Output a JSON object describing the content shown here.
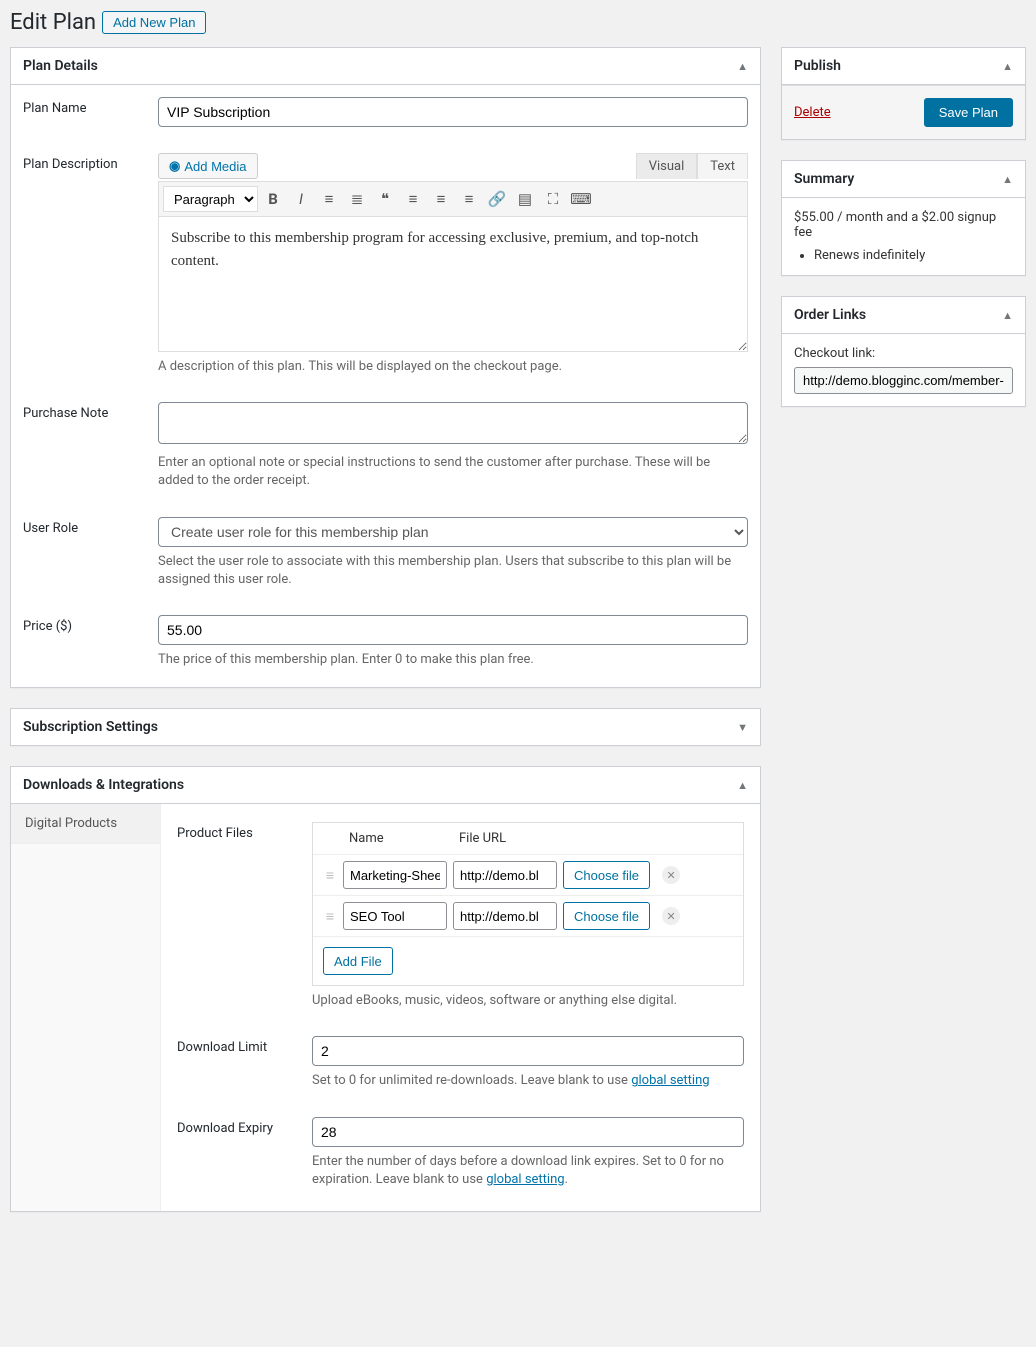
{
  "header": {
    "title": "Edit Plan",
    "add_new_btn": "Add New Plan"
  },
  "plan_details": {
    "panel_title": "Plan Details",
    "plan_name": {
      "label": "Plan Name",
      "value": "VIP Subscription"
    },
    "plan_description": {
      "label": "Plan Description",
      "add_media_btn": "Add Media",
      "tab_visual": "Visual",
      "tab_text": "Text",
      "format_select": "Paragraph",
      "content": "Subscribe to this membership program for accessing exclusive, premium, and top-notch content.",
      "help": "A description of this plan. This will be displayed on the checkout page."
    },
    "purchase_note": {
      "label": "Purchase Note",
      "value": "",
      "help": "Enter an optional note or special instructions to send the customer after purchase. These will be added to the order receipt."
    },
    "user_role": {
      "label": "User Role",
      "value": "Create user role for this membership plan",
      "help": "Select the user role to associate with this membership plan. Users that subscribe to this plan will be assigned this user role."
    },
    "price": {
      "label": "Price ($)",
      "value": "55.00",
      "help": "The price of this membership plan. Enter 0 to make this plan free."
    }
  },
  "subscription_settings": {
    "panel_title": "Subscription Settings"
  },
  "downloads": {
    "panel_title": "Downloads & Integrations",
    "tab_label": "Digital Products",
    "product_files": {
      "label": "Product Files",
      "col_name": "Name",
      "col_url": "File URL",
      "rows": [
        {
          "name": "Marketing-Sheet",
          "url": "http://demo.bl"
        },
        {
          "name": "SEO Tool",
          "url": "http://demo.bl"
        }
      ],
      "choose_btn": "Choose file",
      "add_file_btn": "Add File",
      "help": "Upload eBooks, music, videos, software or anything else digital."
    },
    "download_limit": {
      "label": "Download Limit",
      "value": "2",
      "help_pre": "Set to 0 for unlimited re-downloads. Leave blank to use ",
      "help_link": "global setting"
    },
    "download_expiry": {
      "label": "Download Expiry",
      "value": "28",
      "help_pre": "Enter the number of days before a download link expires. Set to 0 for no expiration. Leave blank to use ",
      "help_link": "global setting"
    }
  },
  "publish": {
    "panel_title": "Publish",
    "delete_label": "Delete",
    "save_label": "Save Plan"
  },
  "summary": {
    "panel_title": "Summary",
    "line": "$55.00 / month and a $2.00 signup fee",
    "bullets": [
      "Renews indefinitely"
    ]
  },
  "order_links": {
    "panel_title": "Order Links",
    "checkout_label": "Checkout link:",
    "checkout_url": "http://demo.blogginc.com/member-ch"
  },
  "colors": {
    "accent": "#0071a1",
    "danger": "#a00",
    "bg": "#f1f1f1",
    "border": "#ccd0d4"
  }
}
